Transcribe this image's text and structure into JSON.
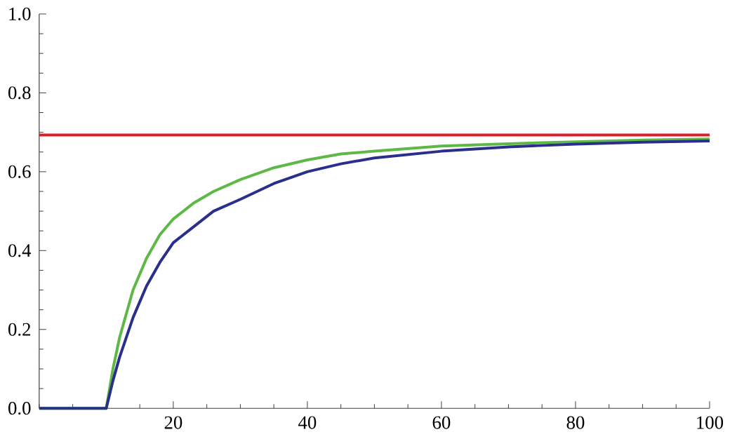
{
  "chart_data": {
    "type": "line",
    "x": [
      0,
      10,
      11,
      12,
      14,
      16,
      18,
      20,
      23,
      26,
      30,
      35,
      40,
      45,
      50,
      60,
      70,
      80,
      90,
      100
    ],
    "series": [
      {
        "color": "#5db845",
        "values": [
          0,
          0,
          0.1,
          0.18,
          0.3,
          0.38,
          0.44,
          0.48,
          0.52,
          0.55,
          0.58,
          0.61,
          0.63,
          0.645,
          0.652,
          0.665,
          0.671,
          0.676,
          0.68,
          0.683
        ]
      },
      {
        "color": "#2b2f8c",
        "values": [
          0,
          0,
          0.07,
          0.13,
          0.23,
          0.31,
          0.37,
          0.42,
          0.46,
          0.5,
          0.53,
          0.57,
          0.6,
          0.62,
          0.635,
          0.652,
          0.663,
          0.67,
          0.675,
          0.678
        ]
      }
    ],
    "ref_lines": [
      {
        "axis": "y",
        "value": 0.693,
        "color": "#d92027"
      }
    ],
    "xlim": [
      0,
      100
    ],
    "ylim": [
      0,
      1
    ],
    "xticks": [
      20,
      40,
      60,
      80,
      100
    ],
    "yticks": [
      {
        "value": 0,
        "label": "0.0"
      },
      {
        "value": 0.2,
        "label": "0.2"
      },
      {
        "value": 0.4,
        "label": "0.4"
      },
      {
        "value": 0.6,
        "label": "0.6"
      },
      {
        "value": 0.8,
        "label": "0.8"
      },
      {
        "value": 1,
        "label": "1.0"
      }
    ],
    "grid": false,
    "legend": false,
    "marker": "none",
    "line_style": "solid"
  }
}
